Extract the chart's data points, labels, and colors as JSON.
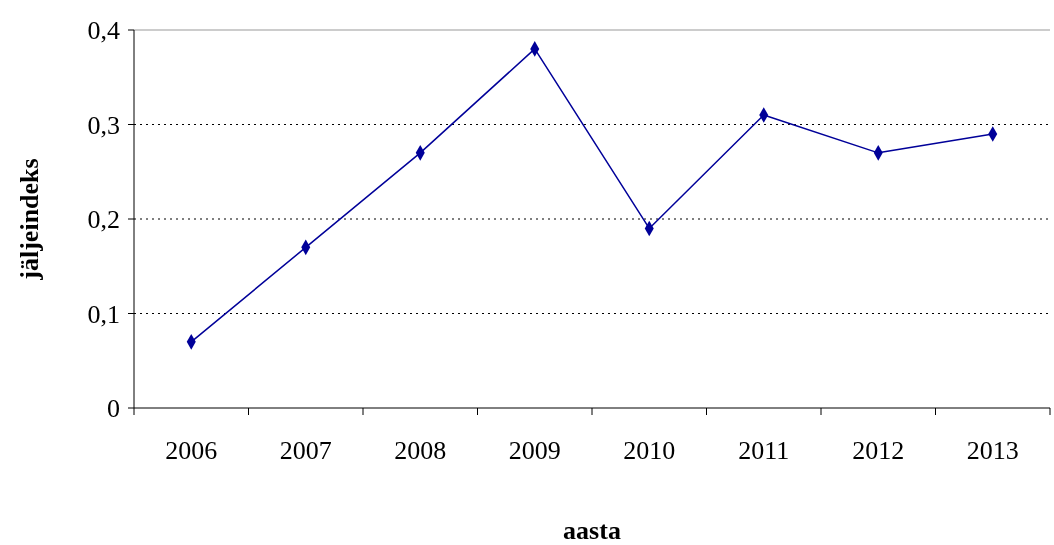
{
  "chart_data": {
    "type": "line",
    "xlabel": "aasta",
    "ylabel": "jäljeindeks",
    "categories": [
      "2006",
      "2007",
      "2008",
      "2009",
      "2010",
      "2011",
      "2012",
      "2013"
    ],
    "series": [
      {
        "color": "#000099",
        "values": [
          0.07,
          0.17,
          0.27,
          0.38,
          0.19,
          0.31,
          0.27,
          0.29
        ]
      }
    ],
    "ylim": [
      0,
      0.4
    ],
    "yticks": [
      0,
      {
        "value": 0.1,
        "label": "0,1"
      },
      {
        "value": 0.2,
        "label": "0,2"
      },
      {
        "value": 0.3,
        "label": "0,3"
      },
      {
        "value": 0.4,
        "label": "0,4"
      }
    ],
    "grid": "y",
    "marker": "diamond",
    "line_style": "solid"
  }
}
